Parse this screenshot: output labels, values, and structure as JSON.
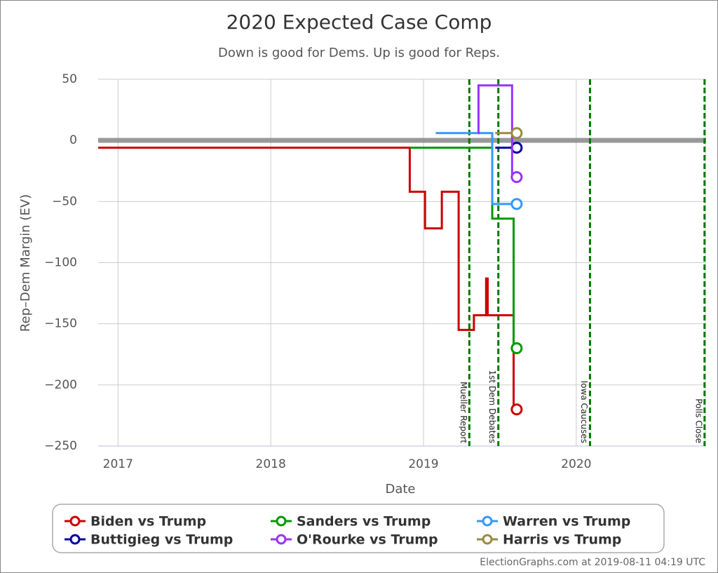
{
  "chart_data": {
    "type": "step",
    "title": "2020 Expected Case Comp",
    "subtitle": "Down is good for Dems. Up is good for Reps.",
    "x_label": "Date",
    "y_label": "Rep–Dem Margin (EV)",
    "xlim": [
      2016.87,
      2020.85
    ],
    "xticks": [
      2017,
      2018,
      2019,
      2020
    ],
    "ylim": [
      -250,
      50
    ],
    "yticks": [
      {
        "value": -250,
        "label": "−250"
      },
      {
        "value": -200,
        "label": "−200"
      },
      {
        "value": -150,
        "label": "−150"
      },
      {
        "value": -100,
        "label": "−100"
      },
      {
        "value": -50,
        "label": "−50"
      },
      0,
      50
    ],
    "grid": true,
    "hline": 0,
    "events": [
      {
        "x": 2019.3,
        "label": "Mueller Report"
      },
      {
        "x": 2019.49,
        "label": "1st Dem Debates"
      },
      {
        "x": 2020.09,
        "label": "Iowa Caucuses"
      },
      {
        "x": 2020.84,
        "label": "Polls Close"
      }
    ],
    "series": [
      {
        "name": "Biden vs Trump",
        "color": "#cc0000",
        "x": [
          2016.87,
          2018.91,
          2019.01,
          2019.12,
          2019.23,
          2019.33,
          2019.41,
          2019.42,
          2019.59,
          2019.61
        ],
        "values": [
          -6,
          -42,
          -72,
          -42,
          -155,
          -143,
          -113,
          -143,
          -220,
          -220
        ]
      },
      {
        "name": "Sanders vs Trump",
        "color": "#009900",
        "x": [
          2018.91,
          2019.45,
          2019.59,
          2019.61
        ],
        "values": [
          -6,
          -64,
          -170,
          -170
        ]
      },
      {
        "name": "Warren vs Trump",
        "color": "#3399ff",
        "x": [
          2019.08,
          2019.45,
          2019.61
        ],
        "values": [
          6,
          -52,
          -52
        ]
      },
      {
        "name": "Buttigieg vs Trump",
        "color": "#0000aa",
        "x": [
          2019.47,
          2019.61
        ],
        "values": [
          -6,
          -6
        ]
      },
      {
        "name": "O'Rourke vs Trump",
        "color": "#9933ff",
        "x": [
          2019.355,
          2019.36,
          2019.58,
          2019.61
        ],
        "values": [
          6,
          45,
          -30,
          -30
        ]
      },
      {
        "name": "Harris vs Trump",
        "color": "#998a44",
        "x": [
          2019.47,
          2019.61
        ],
        "values": [
          6,
          6
        ]
      }
    ],
    "credit": "ElectionGraphs.com at 2019-08-11 04:19 UTC"
  }
}
